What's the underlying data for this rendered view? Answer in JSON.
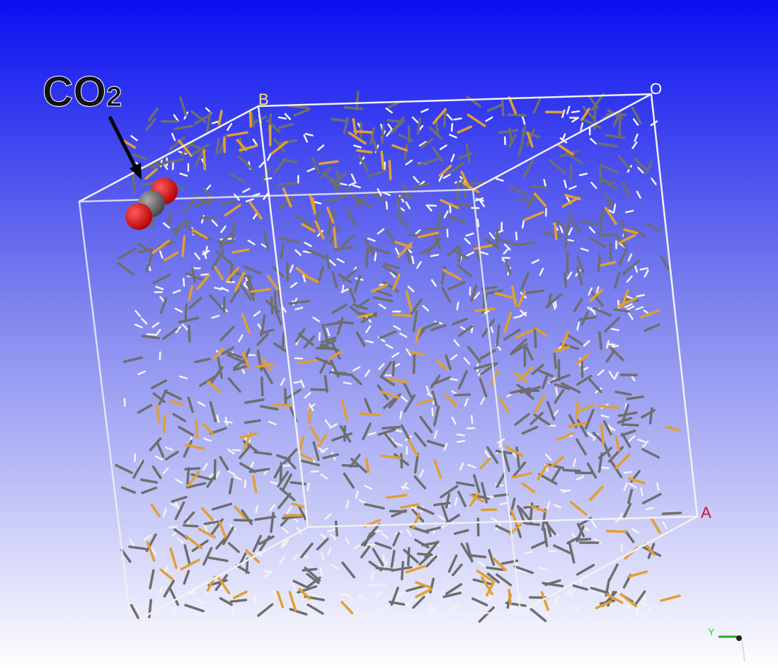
{
  "annotation": {
    "text": "CO",
    "subscript": "2"
  },
  "cell_labels": {
    "b": "B",
    "o": "O",
    "a": "A"
  },
  "axis_indicator": {
    "y": "Y"
  }
}
